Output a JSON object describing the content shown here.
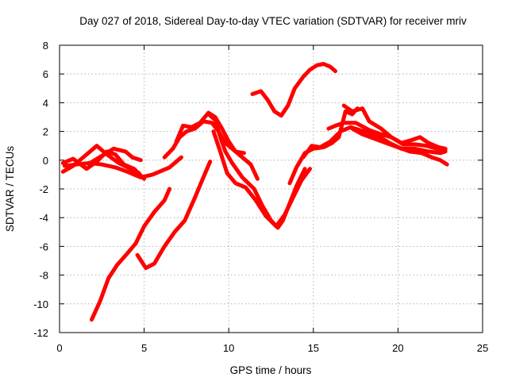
{
  "chart_data": {
    "type": "line",
    "title": "Day 027 of 2018, Sidereal Day-to-day VTEC variation (SDTVAR) for receiver mriv",
    "xlabel": "GPS time / hours",
    "ylabel": "SDTVAR / TECUs",
    "xlim": [
      0,
      25
    ],
    "ylim": [
      -12,
      8
    ],
    "xticks": [
      0,
      5,
      10,
      15,
      20,
      25
    ],
    "yticks": [
      -12,
      -10,
      -8,
      -6,
      -4,
      -2,
      0,
      2,
      4,
      6,
      8
    ],
    "grid": true,
    "legend": "none",
    "series_color": "#ff0000",
    "series": [
      {
        "name": "arc-1",
        "points": [
          [
            0.2,
            -0.8
          ],
          [
            0.8,
            -0.4
          ],
          [
            1.5,
            0.3
          ],
          [
            2.2,
            1.0
          ],
          [
            2.8,
            0.4
          ],
          [
            3.5,
            -0.2
          ],
          [
            4.2,
            -0.6
          ],
          [
            4.7,
            -0.9
          ]
        ]
      },
      {
        "name": "arc-2",
        "points": [
          [
            0.3,
            -0.4
          ],
          [
            1.0,
            -0.3
          ],
          [
            1.8,
            -0.2
          ],
          [
            2.5,
            -0.3
          ],
          [
            3.3,
            -0.5
          ],
          [
            4.0,
            -0.8
          ],
          [
            4.8,
            -1.2
          ],
          [
            5.5,
            -1.0
          ],
          [
            6.5,
            -0.5
          ],
          [
            7.2,
            0.2
          ]
        ]
      },
      {
        "name": "arc-3",
        "points": [
          [
            0.2,
            -0.2
          ],
          [
            0.8,
            0.1
          ],
          [
            1.6,
            -0.6
          ],
          [
            2.2,
            -0.1
          ],
          [
            2.8,
            0.6
          ],
          [
            3.3,
            0.4
          ],
          [
            3.8,
            -0.3
          ],
          [
            4.4,
            -0.6
          ],
          [
            5.0,
            -1.3
          ]
        ]
      },
      {
        "name": "arc-4",
        "points": [
          [
            1.8,
            -0.2
          ],
          [
            2.5,
            0.3
          ],
          [
            3.2,
            0.8
          ],
          [
            3.9,
            0.6
          ],
          [
            4.3,
            0.2
          ],
          [
            4.8,
            0.0
          ]
        ]
      },
      {
        "name": "arc-5",
        "points": [
          [
            1.9,
            -11.1
          ],
          [
            2.4,
            -9.8
          ],
          [
            2.9,
            -8.2
          ],
          [
            3.4,
            -7.3
          ],
          [
            4.0,
            -6.5
          ],
          [
            4.5,
            -5.8
          ],
          [
            5.0,
            -4.6
          ],
          [
            5.6,
            -3.6
          ],
          [
            6.2,
            -2.8
          ],
          [
            6.5,
            -2.0
          ]
        ]
      },
      {
        "name": "arc-6",
        "points": [
          [
            4.6,
            -6.6
          ],
          [
            5.1,
            -7.5
          ],
          [
            5.6,
            -7.2
          ],
          [
            6.2,
            -6.0
          ],
          [
            6.8,
            -5.0
          ],
          [
            7.4,
            -4.2
          ],
          [
            8.0,
            -2.6
          ],
          [
            8.5,
            -1.2
          ],
          [
            8.9,
            -0.1
          ]
        ]
      },
      {
        "name": "arc-7",
        "points": [
          [
            6.2,
            0.2
          ],
          [
            6.7,
            0.8
          ],
          [
            7.1,
            1.6
          ],
          [
            7.5,
            2.0
          ],
          [
            8.0,
            2.2
          ],
          [
            8.5,
            2.7
          ],
          [
            9.0,
            2.6
          ],
          [
            9.4,
            2.0
          ],
          [
            9.8,
            1.2
          ],
          [
            10.2,
            0.8
          ],
          [
            10.8,
            0.2
          ],
          [
            11.3,
            -0.3
          ],
          [
            11.7,
            -1.3
          ]
        ]
      },
      {
        "name": "arc-8",
        "points": [
          [
            6.9,
            1.3
          ],
          [
            7.3,
            2.4
          ],
          [
            7.8,
            2.3
          ],
          [
            8.3,
            2.6
          ],
          [
            8.8,
            3.3
          ],
          [
            9.2,
            3.0
          ],
          [
            9.6,
            2.2
          ],
          [
            10.0,
            1.3
          ],
          [
            10.4,
            0.6
          ],
          [
            10.9,
            0.5
          ]
        ]
      },
      {
        "name": "arc-9",
        "points": [
          [
            8.8,
            3.2
          ],
          [
            9.2,
            2.8
          ],
          [
            9.5,
            1.6
          ],
          [
            9.8,
            0.6
          ],
          [
            10.2,
            -0.2
          ],
          [
            10.8,
            -1.2
          ],
          [
            11.5,
            -2.0
          ],
          [
            12.0,
            -3.2
          ],
          [
            12.5,
            -4.2
          ],
          [
            12.9,
            -4.7
          ],
          [
            13.2,
            -4.2
          ],
          [
            13.6,
            -3.0
          ],
          [
            14.0,
            -1.8
          ],
          [
            14.5,
            -0.6
          ]
        ]
      },
      {
        "name": "arc-10",
        "points": [
          [
            9.1,
            2.0
          ],
          [
            9.5,
            0.6
          ],
          [
            9.9,
            -0.9
          ],
          [
            10.4,
            -1.6
          ],
          [
            11.0,
            -1.9
          ],
          [
            11.6,
            -2.8
          ],
          [
            12.2,
            -3.9
          ],
          [
            12.8,
            -4.6
          ],
          [
            13.3,
            -3.8
          ],
          [
            13.8,
            -2.6
          ],
          [
            14.3,
            -1.4
          ],
          [
            14.8,
            -0.6
          ]
        ]
      },
      {
        "name": "arc-11",
        "points": [
          [
            13.6,
            -1.6
          ],
          [
            14.0,
            -0.5
          ],
          [
            14.5,
            0.5
          ],
          [
            15.0,
            0.8
          ],
          [
            15.6,
            0.9
          ],
          [
            16.1,
            1.2
          ],
          [
            16.5,
            1.6
          ],
          [
            16.9,
            3.4
          ],
          [
            17.3,
            3.2
          ],
          [
            17.6,
            3.6
          ]
        ]
      },
      {
        "name": "arc-12",
        "points": [
          [
            14.4,
            0.2
          ],
          [
            14.9,
            1.0
          ],
          [
            15.4,
            0.9
          ],
          [
            16.0,
            1.3
          ],
          [
            16.6,
            2.0
          ],
          [
            17.2,
            2.3
          ],
          [
            18.0,
            2.0
          ],
          [
            18.8,
            1.7
          ],
          [
            19.5,
            1.2
          ],
          [
            20.2,
            0.8
          ],
          [
            21.0,
            0.8
          ],
          [
            21.8,
            0.6
          ],
          [
            22.5,
            0.5
          ],
          [
            22.8,
            0.6
          ]
        ]
      },
      {
        "name": "arc-13",
        "points": [
          [
            15.9,
            2.2
          ],
          [
            16.3,
            2.4
          ],
          [
            16.8,
            2.6
          ],
          [
            17.5,
            2.6
          ],
          [
            18.3,
            2.1
          ],
          [
            19.0,
            1.8
          ],
          [
            19.6,
            1.6
          ],
          [
            20.3,
            1.1
          ],
          [
            21.0,
            1.1
          ],
          [
            21.7,
            1.0
          ],
          [
            22.3,
            0.8
          ],
          [
            22.8,
            0.7
          ]
        ]
      },
      {
        "name": "arc-14",
        "points": [
          [
            16.8,
            3.8
          ],
          [
            17.3,
            3.4
          ],
          [
            17.9,
            3.6
          ],
          [
            18.3,
            2.7
          ],
          [
            19.0,
            2.2
          ],
          [
            19.6,
            1.6
          ],
          [
            20.2,
            1.2
          ],
          [
            20.8,
            1.4
          ],
          [
            21.3,
            1.6
          ],
          [
            21.8,
            1.2
          ],
          [
            22.4,
            0.9
          ],
          [
            22.8,
            0.8
          ]
        ]
      },
      {
        "name": "arc-15",
        "points": [
          [
            17.3,
            2.2
          ],
          [
            17.9,
            1.8
          ],
          [
            18.6,
            1.5
          ],
          [
            19.3,
            1.2
          ],
          [
            20.0,
            0.9
          ],
          [
            20.7,
            0.6
          ],
          [
            21.4,
            0.5
          ],
          [
            22.0,
            0.2
          ],
          [
            22.5,
            0.0
          ],
          [
            22.9,
            -0.3
          ]
        ]
      },
      {
        "name": "arc-16",
        "points": [
          [
            11.4,
            4.6
          ],
          [
            11.9,
            4.8
          ],
          [
            12.3,
            4.2
          ],
          [
            12.7,
            3.4
          ],
          [
            13.1,
            3.1
          ],
          [
            13.5,
            3.8
          ],
          [
            13.9,
            5.0
          ],
          [
            14.4,
            5.8
          ],
          [
            14.8,
            6.3
          ],
          [
            15.2,
            6.6
          ],
          [
            15.6,
            6.7
          ],
          [
            16.0,
            6.5
          ],
          [
            16.3,
            6.2
          ]
        ]
      }
    ]
  }
}
